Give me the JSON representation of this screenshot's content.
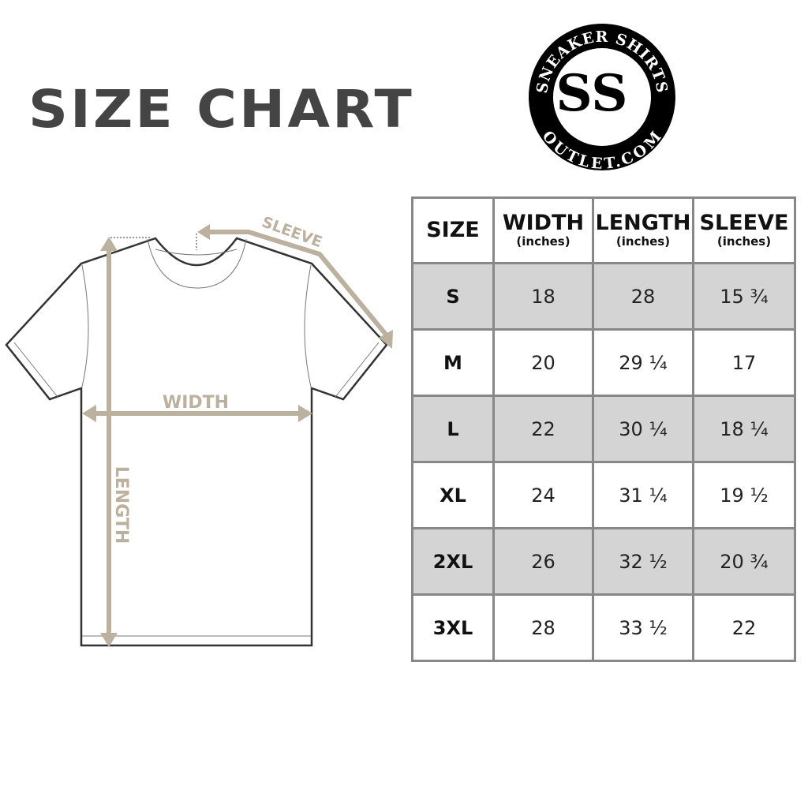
{
  "title": "SIZE CHART",
  "logo": {
    "top_text": "SNEAKER SHIRTS",
    "bottom_text": "OUTLET.COM",
    "monogram": "SS"
  },
  "diagram": {
    "width_label": "WIDTH",
    "length_label": "LENGTH",
    "sleeve_label": "SLEEVE",
    "accent_color": "#bcb09f"
  },
  "table": {
    "headers": [
      {
        "label": "SIZE",
        "unit": ""
      },
      {
        "label": "WIDTH",
        "unit": "(inches)"
      },
      {
        "label": "LENGTH",
        "unit": "(inches)"
      },
      {
        "label": "SLEEVE",
        "unit": "(inches)"
      }
    ],
    "rows": [
      [
        "S",
        "18",
        "28",
        "15 ¾"
      ],
      [
        "M",
        "20",
        "29 ¼",
        "17"
      ],
      [
        "L",
        "22",
        "30 ¼",
        "18 ¼"
      ],
      [
        "XL",
        "24",
        "31 ¼",
        "19 ½"
      ],
      [
        "2XL",
        "26",
        "32 ½",
        "20 ¾"
      ],
      [
        "3XL",
        "28",
        "33 ½",
        "22"
      ]
    ],
    "stripe_color": "#d4d4d4",
    "border_color": "#888888"
  }
}
